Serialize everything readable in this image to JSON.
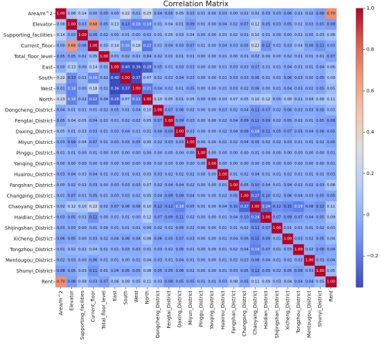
{
  "chart_data": {
    "type": "heatmap",
    "title": "Correlation Matrix",
    "labels": [
      "Area/m^2",
      "Elevator",
      "Supporting_facilities",
      "Current_floor",
      "Total_floor_level",
      "East",
      "South",
      "West",
      "North",
      "Dongcheng_District",
      "Fengtai_District",
      "Daxing_District",
      "Miyun_District",
      "Pinggu_District",
      "Yanqing_District",
      "Huairou_District",
      "Fangshan_District",
      "Changping_District",
      "Chaoyang_District",
      "Haidian_District",
      "Shijingshan_District",
      "Xicheng_District",
      "Tongzhou_District",
      "Mentougou_District",
      "Shunyi_District",
      "Rent"
    ],
    "values": [
      [
        1.0,
        0.08,
        0.14,
        0.0,
        0.05,
        0.0,
        0.22,
        0.01,
        0.23,
        0.04,
        0.05,
        0.05,
        0.03,
        0.01,
        0.0,
        0.03,
        0.0,
        0.01,
        0.02,
        0.03,
        0.03,
        0.06,
        0.01,
        0.02,
        0.08,
        0.7
      ],
      [
        0.08,
        1.0,
        0.03,
        0.68,
        0.05,
        0.13,
        0.13,
        0.18,
        0.18,
        0.01,
        0.04,
        0.01,
        0.09,
        0.01,
        0.0,
        0.04,
        0.02,
        0.07,
        0.12,
        0.05,
        0.03,
        0.05,
        0.02,
        0.03,
        0.05,
        0.08
      ],
      [
        0.14,
        0.03,
        1.0,
        0.06,
        0.02,
        0.0,
        0.01,
        0.0,
        0.02,
        0.01,
        0.05,
        0.03,
        0.04,
        0.0,
        0.0,
        0.03,
        0.02,
        0.01,
        0.1,
        0.01,
        0.0,
        0.0,
        0.02,
        0.0,
        0.03,
        0.08
      ],
      [
        0.0,
        0.68,
        0.06,
        1.0,
        0.05,
        0.14,
        0.16,
        0.18,
        0.22,
        0.01,
        0.04,
        0.03,
        0.07,
        0.01,
        0.0,
        0.04,
        0.03,
        0.05,
        0.22,
        0.12,
        0.01,
        0.03,
        0.04,
        0.06,
        0.11,
        0.03
      ],
      [
        0.05,
        0.05,
        0.02,
        0.05,
        1.0,
        0.01,
        0.02,
        0.01,
        0.04,
        0.02,
        0.01,
        0.01,
        0.01,
        0.0,
        0.0,
        0.01,
        0.0,
        0.01,
        0.02,
        0.0,
        0.0,
        0.02,
        0.01,
        0.01,
        0.01,
        0.07
      ],
      [
        0.0,
        0.13,
        0.0,
        0.14,
        0.01,
        1.0,
        0.4,
        0.36,
        0.28,
        0.05,
        0.01,
        0.03,
        0.03,
        0.0,
        0.0,
        0.01,
        0.03,
        0.03,
        0.07,
        0.01,
        0.01,
        0.04,
        0.01,
        0.01,
        0.04,
        0.06
      ],
      [
        0.22,
        0.13,
        0.01,
        0.16,
        0.02,
        0.4,
        1.0,
        0.37,
        0.07,
        0.01,
        0.02,
        0.04,
        0.03,
        0.0,
        0.0,
        0.01,
        0.03,
        0.03,
        0.06,
        0.01,
        0.01,
        0.06,
        0.03,
        0.0,
        0.05,
        0.09
      ],
      [
        0.01,
        0.18,
        0.0,
        0.18,
        0.01,
        0.36,
        0.37,
        1.0,
        0.21,
        0.04,
        0.02,
        0.01,
        0.05,
        0.0,
        0.0,
        0.01,
        0.03,
        0.02,
        0.06,
        0.0,
        0.01,
        0.04,
        0.03,
        0.02,
        0.05,
        0.05
      ],
      [
        0.23,
        0.18,
        0.02,
        0.22,
        0.04,
        0.28,
        0.07,
        0.21,
        1.0,
        0.1,
        0.05,
        0.01,
        0.05,
        0.0,
        0.0,
        0.03,
        0.07,
        0.05,
        0.1,
        0.12,
        0.0,
        0.08,
        0.01,
        0.04,
        0.08,
        0.11
      ],
      [
        0.04,
        0.01,
        0.01,
        0.01,
        0.02,
        0.05,
        0.01,
        0.04,
        0.1,
        1.0,
        0.07,
        0.06,
        0.02,
        0.0,
        0.0,
        0.03,
        0.02,
        0.04,
        0.12,
        0.07,
        0.02,
        0.06,
        0.03,
        0.03,
        0.05,
        0.03
      ],
      [
        0.05,
        0.04,
        0.05,
        0.04,
        0.01,
        0.01,
        0.02,
        0.02,
        0.05,
        0.07,
        1.0,
        0.09,
        0.03,
        0.0,
        0.0,
        0.02,
        0.04,
        0.09,
        0.12,
        0.09,
        0.02,
        0.05,
        0.02,
        0.01,
        0.05,
        0.08
      ],
      [
        0.05,
        0.01,
        0.03,
        0.03,
        0.01,
        0.03,
        0.04,
        0.01,
        0.01,
        0.06,
        0.09,
        1.0,
        0.03,
        0.0,
        0.0,
        0.02,
        0.04,
        0.08,
        0.18,
        0.11,
        0.05,
        0.07,
        0.05,
        0.04,
        0.06,
        0.05
      ],
      [
        0.03,
        0.09,
        0.04,
        0.07,
        0.01,
        0.03,
        0.03,
        0.05,
        0.05,
        0.02,
        0.03,
        0.03,
        1.0,
        0.0,
        0.0,
        0.02,
        0.02,
        0.04,
        0.05,
        0.02,
        0.02,
        0.03,
        0.01,
        0.01,
        0.02,
        0.05
      ],
      [
        0.01,
        0.01,
        0.0,
        0.01,
        0.0,
        0.0,
        0.0,
        0.0,
        0.0,
        0.0,
        0.0,
        0.0,
        0.0,
        1.0,
        0.0,
        0.0,
        0.0,
        0.0,
        0.01,
        0.0,
        0.0,
        0.0,
        0.0,
        0.0,
        0.0,
        0.01
      ],
      [
        0.0,
        0.0,
        0.0,
        0.0,
        0.0,
        0.0,
        0.0,
        0.0,
        0.0,
        0.0,
        0.0,
        0.0,
        0.0,
        0.0,
        1.0,
        0.0,
        0.0,
        0.0,
        0.0,
        0.0,
        0.0,
        0.0,
        0.0,
        0.0,
        0.0,
        0.01
      ],
      [
        0.03,
        0.04,
        0.03,
        0.04,
        0.01,
        0.01,
        0.01,
        0.01,
        0.03,
        0.03,
        0.02,
        0.02,
        0.02,
        0.0,
        0.0,
        1.0,
        0.01,
        0.02,
        0.04,
        0.01,
        0.01,
        0.02,
        0.01,
        0.01,
        0.01,
        0.03
      ],
      [
        0.0,
        0.02,
        0.02,
        0.03,
        0.0,
        0.03,
        0.03,
        0.03,
        0.07,
        0.02,
        0.04,
        0.04,
        0.02,
        0.0,
        0.0,
        0.01,
        1.0,
        0.05,
        0.1,
        0.04,
        0.01,
        0.04,
        0.02,
        0.02,
        0.03,
        0.08
      ],
      [
        0.01,
        0.07,
        0.01,
        0.05,
        0.01,
        0.03,
        0.03,
        0.02,
        0.05,
        0.04,
        0.09,
        0.08,
        0.04,
        0.0,
        0.0,
        0.02,
        0.05,
        1.0,
        0.27,
        0.1,
        0.02,
        0.06,
        0.04,
        0.03,
        0.05,
        0.05
      ],
      [
        0.02,
        0.12,
        0.1,
        0.22,
        0.02,
        0.07,
        0.06,
        0.06,
        0.1,
        0.12,
        0.12,
        0.18,
        0.05,
        0.01,
        0.0,
        0.04,
        0.1,
        0.27,
        1.0,
        0.24,
        0.12,
        0.15,
        0.19,
        0.08,
        0.12,
        0.11
      ],
      [
        0.03,
        0.05,
        0.01,
        0.12,
        0.0,
        0.01,
        0.01,
        0.0,
        0.12,
        0.07,
        0.09,
        0.11,
        0.02,
        0.0,
        0.0,
        0.01,
        0.04,
        0.1,
        0.24,
        1.0,
        0.07,
        0.09,
        0.07,
        0.04,
        0.05,
        0.09
      ],
      [
        0.03,
        0.03,
        0.0,
        0.01,
        0.0,
        0.01,
        0.01,
        0.01,
        0.0,
        0.02,
        0.02,
        0.05,
        0.02,
        0.0,
        0.0,
        0.01,
        0.01,
        0.02,
        0.12,
        0.07,
        1.0,
        0.01,
        0.01,
        0.01,
        0.02,
        0.03
      ],
      [
        0.06,
        0.05,
        0.0,
        0.03,
        0.02,
        0.04,
        0.06,
        0.04,
        0.08,
        0.06,
        0.05,
        0.07,
        0.03,
        0.0,
        0.0,
        0.02,
        0.04,
        0.06,
        0.15,
        0.09,
        0.01,
        1.0,
        0.03,
        0.02,
        0.05,
        0.04
      ],
      [
        0.01,
        0.02,
        0.02,
        0.04,
        0.01,
        0.01,
        0.03,
        0.03,
        0.01,
        0.03,
        0.02,
        0.05,
        0.01,
        0.0,
        0.0,
        0.01,
        0.02,
        0.04,
        0.19,
        0.07,
        0.01,
        0.03,
        1.0,
        0.02,
        0.08,
        0.04
      ],
      [
        0.02,
        0.03,
        0.0,
        0.06,
        0.01,
        0.01,
        0.0,
        0.02,
        0.04,
        0.03,
        0.01,
        0.04,
        0.01,
        0.0,
        0.0,
        0.01,
        0.02,
        0.03,
        0.08,
        0.04,
        0.01,
        0.02,
        0.02,
        1.0,
        0.03,
        0.04
      ],
      [
        0.08,
        0.05,
        0.03,
        0.11,
        0.01,
        0.04,
        0.05,
        0.05,
        0.08,
        0.05,
        0.05,
        0.06,
        0.02,
        0.0,
        0.0,
        0.01,
        0.03,
        0.05,
        0.12,
        0.05,
        0.02,
        0.05,
        0.08,
        0.03,
        1.0,
        0.05
      ],
      [
        0.7,
        0.08,
        0.08,
        0.03,
        0.07,
        0.06,
        0.09,
        0.05,
        0.11,
        0.03,
        0.08,
        0.05,
        0.05,
        0.01,
        0.01,
        0.03,
        0.08,
        0.05,
        0.11,
        0.09,
        0.03,
        0.04,
        0.04,
        0.04,
        0.05,
        1.0
      ]
    ],
    "signs": [
      [
        1,
        1,
        1,
        1,
        -1,
        1,
        1,
        -1,
        1,
        -1,
        -1,
        1,
        -1,
        1,
        1,
        -1,
        1,
        -1,
        1,
        -1,
        -1,
        -1,
        -1,
        -1,
        -1,
        1
      ],
      [
        1,
        1,
        -1,
        1,
        -1,
        1,
        -1,
        -1,
        -1,
        1,
        1,
        1,
        -1,
        1,
        1,
        -1,
        -1,
        -1,
        1,
        -1,
        -1,
        -1,
        1,
        -1,
        -1,
        -1
      ],
      [
        1,
        -1,
        1,
        -1,
        -1,
        1,
        1,
        1,
        -1,
        1,
        1,
        1,
        1,
        1,
        1,
        1,
        1,
        -1,
        1,
        1,
        1,
        1,
        1,
        1,
        1,
        1
      ],
      [
        1,
        1,
        -1,
        1,
        1,
        1,
        -1,
        1,
        -1,
        1,
        -1,
        -1,
        -1,
        1,
        1,
        -1,
        -1,
        -1,
        1,
        -1,
        -1,
        -1,
        1,
        -1,
        -1,
        -1
      ],
      [
        -1,
        -1,
        -1,
        1,
        1,
        -1,
        -1,
        -1,
        -1,
        -1,
        -1,
        -1,
        -1,
        -1,
        -1,
        -1,
        -1,
        -1,
        -1,
        -1,
        -1,
        -1,
        -1,
        -1,
        -1,
        -1
      ],
      [
        1,
        1,
        1,
        1,
        -1,
        1,
        -1,
        -1,
        -1,
        -1,
        -1,
        -1,
        -1,
        -1,
        -1,
        -1,
        -1,
        -1,
        -1,
        -1,
        -1,
        -1,
        -1,
        -1,
        -1,
        1
      ],
      [
        1,
        -1,
        1,
        -1,
        -1,
        -1,
        1,
        -1,
        1,
        -1,
        -1,
        -1,
        -1,
        -1,
        -1,
        -1,
        -1,
        -1,
        -1,
        -1,
        -1,
        -1,
        -1,
        -1,
        -1,
        1
      ],
      [
        -1,
        -1,
        1,
        1,
        -1,
        -1,
        -1,
        1,
        -1,
        -1,
        -1,
        -1,
        -1,
        -1,
        -1,
        -1,
        -1,
        -1,
        -1,
        -1,
        -1,
        -1,
        -1,
        -1,
        -1,
        1
      ],
      [
        1,
        -1,
        -1,
        -1,
        -1,
        -1,
        1,
        -1,
        1,
        1,
        1,
        1,
        1,
        1,
        1,
        1,
        1,
        1,
        1,
        1,
        1,
        1,
        1,
        1,
        1,
        1
      ],
      [
        -1,
        1,
        1,
        1,
        -1,
        -1,
        -1,
        -1,
        1,
        1,
        -1,
        -1,
        -1,
        -1,
        -1,
        -1,
        -1,
        -1,
        -1,
        -1,
        -1,
        -1,
        -1,
        -1,
        -1,
        1
      ],
      [
        -1,
        1,
        1,
        -1,
        -1,
        -1,
        -1,
        -1,
        1,
        -1,
        1,
        -1,
        -1,
        -1,
        -1,
        -1,
        -1,
        -1,
        -1,
        -1,
        -1,
        -1,
        -1,
        -1,
        -1,
        -1
      ],
      [
        1,
        1,
        1,
        -1,
        -1,
        -1,
        -1,
        -1,
        1,
        -1,
        -1,
        1,
        -1,
        -1,
        -1,
        -1,
        -1,
        -1,
        -1,
        -1,
        -1,
        -1,
        -1,
        -1,
        -1,
        -1
      ],
      [
        -1,
        -1,
        1,
        -1,
        -1,
        -1,
        -1,
        -1,
        1,
        -1,
        -1,
        -1,
        1,
        -1,
        -1,
        -1,
        -1,
        -1,
        -1,
        -1,
        -1,
        -1,
        -1,
        -1,
        -1,
        -1
      ],
      [
        1,
        1,
        1,
        1,
        -1,
        -1,
        -1,
        -1,
        1,
        -1,
        -1,
        -1,
        -1,
        1,
        -1,
        -1,
        -1,
        -1,
        -1,
        -1,
        -1,
        -1,
        -1,
        -1,
        -1,
        -1
      ],
      [
        1,
        1,
        1,
        1,
        -1,
        -1,
        -1,
        -1,
        1,
        -1,
        -1,
        -1,
        -1,
        -1,
        1,
        -1,
        -1,
        -1,
        -1,
        -1,
        -1,
        -1,
        -1,
        -1,
        -1,
        -1
      ],
      [
        -1,
        -1,
        1,
        -1,
        -1,
        -1,
        -1,
        -1,
        1,
        -1,
        -1,
        -1,
        -1,
        -1,
        -1,
        1,
        -1,
        -1,
        -1,
        -1,
        -1,
        -1,
        -1,
        -1,
        -1,
        -1
      ],
      [
        1,
        -1,
        1,
        -1,
        -1,
        -1,
        -1,
        -1,
        1,
        -1,
        -1,
        -1,
        -1,
        -1,
        -1,
        -1,
        1,
        -1,
        -1,
        -1,
        -1,
        -1,
        -1,
        -1,
        -1,
        1
      ],
      [
        -1,
        -1,
        -1,
        -1,
        -1,
        -1,
        -1,
        -1,
        1,
        -1,
        -1,
        -1,
        -1,
        -1,
        -1,
        -1,
        -1,
        1,
        -1,
        -1,
        -1,
        -1,
        -1,
        -1,
        -1,
        -1
      ],
      [
        1,
        1,
        1,
        1,
        -1,
        -1,
        -1,
        -1,
        1,
        -1,
        -1,
        -1,
        -1,
        -1,
        -1,
        -1,
        -1,
        -1,
        1,
        -1,
        -1,
        -1,
        -1,
        -1,
        -1,
        1
      ],
      [
        -1,
        -1,
        1,
        -1,
        -1,
        -1,
        -1,
        -1,
        1,
        -1,
        -1,
        -1,
        -1,
        -1,
        -1,
        -1,
        -1,
        -1,
        -1,
        1,
        -1,
        -1,
        -1,
        -1,
        -1,
        1
      ],
      [
        -1,
        -1,
        1,
        -1,
        -1,
        -1,
        -1,
        -1,
        1,
        -1,
        -1,
        -1,
        -1,
        -1,
        -1,
        -1,
        -1,
        -1,
        -1,
        -1,
        1,
        -1,
        -1,
        -1,
        -1,
        1
      ],
      [
        -1,
        -1,
        1,
        -1,
        -1,
        -1,
        -1,
        -1,
        1,
        -1,
        -1,
        -1,
        -1,
        -1,
        -1,
        -1,
        -1,
        -1,
        -1,
        -1,
        -1,
        1,
        -1,
        -1,
        -1,
        1
      ],
      [
        -1,
        1,
        1,
        1,
        -1,
        -1,
        -1,
        -1,
        1,
        -1,
        -1,
        -1,
        -1,
        -1,
        -1,
        -1,
        -1,
        -1,
        -1,
        -1,
        -1,
        -1,
        1,
        -1,
        -1,
        -1
      ],
      [
        -1,
        -1,
        1,
        -1,
        -1,
        -1,
        -1,
        -1,
        1,
        -1,
        -1,
        -1,
        -1,
        -1,
        -1,
        -1,
        -1,
        -1,
        -1,
        -1,
        -1,
        -1,
        -1,
        1,
        -1,
        -1
      ],
      [
        -1,
        -1,
        1,
        -1,
        -1,
        -1,
        -1,
        -1,
        1,
        -1,
        -1,
        -1,
        -1,
        -1,
        -1,
        -1,
        -1,
        -1,
        -1,
        -1,
        -1,
        -1,
        -1,
        -1,
        1,
        1
      ],
      [
        1,
        -1,
        1,
        -1,
        -1,
        1,
        1,
        1,
        1,
        1,
        -1,
        -1,
        -1,
        -1,
        -1,
        -1,
        1,
        -1,
        1,
        1,
        1,
        1,
        -1,
        -1,
        1,
        1
      ]
    ],
    "colorbar": {
      "ticks": [
        1.0,
        0.8,
        0.6,
        0.4,
        0.2,
        0.0,
        -0.2
      ],
      "tick_labels": [
        "1.0",
        "0.8",
        "0.6",
        "0.4",
        "0.2",
        "0",
        "−0.2"
      ],
      "range": [
        -0.35,
        1.0
      ]
    },
    "colormap": "coolwarm",
    "colors": {
      "low": "#3b4cc0",
      "mid": "#dddddd",
      "high": "#b40426"
    }
  }
}
